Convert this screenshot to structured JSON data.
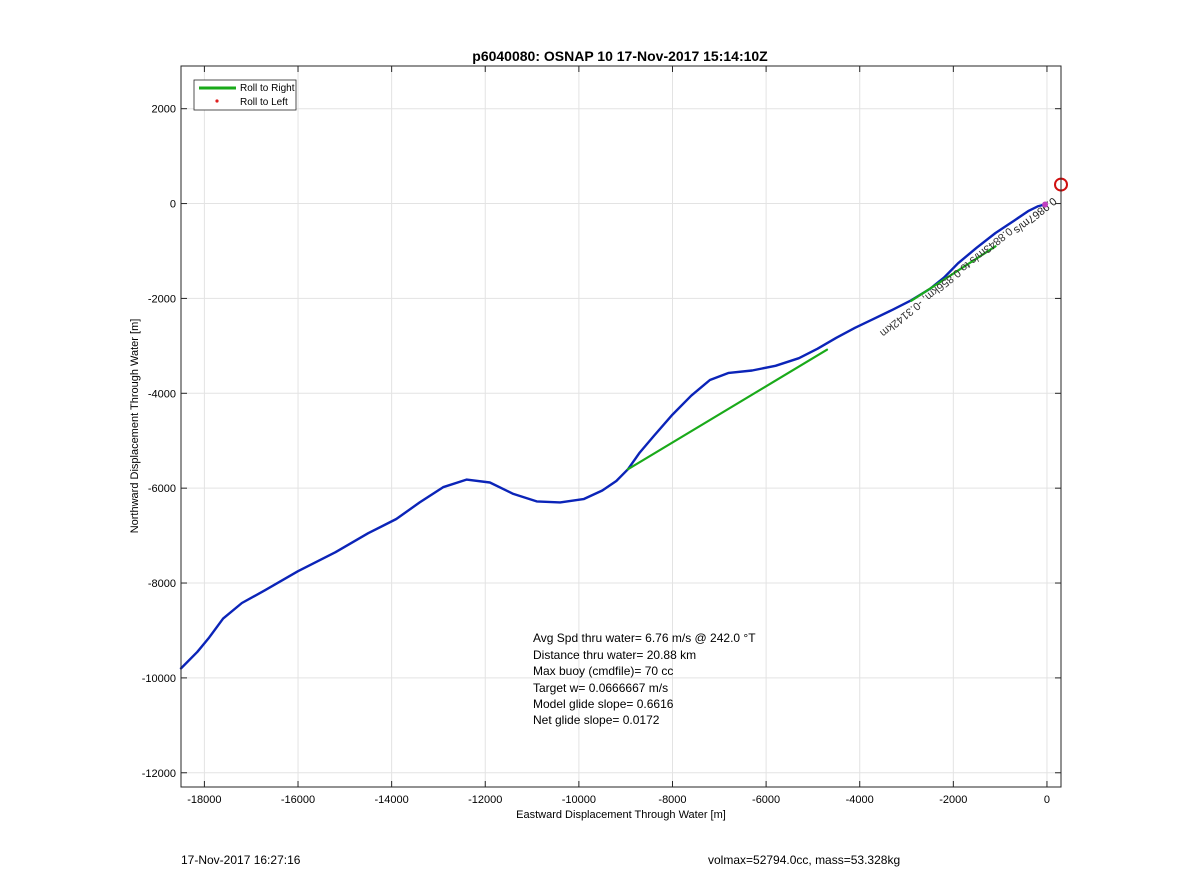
{
  "chart_data": {
    "type": "line",
    "title": "p6040080: OSNAP 10 17-Nov-2017 15:14:10Z",
    "xlabel": "Eastward Displacement Through Water [m]",
    "ylabel": "Northward Displacement Through Water [m]",
    "xlim": [
      -18500,
      300
    ],
    "ylim": [
      -12300,
      2900
    ],
    "xticks": [
      -18000,
      -16000,
      -14000,
      -12000,
      -10000,
      -8000,
      -6000,
      -4000,
      -2000,
      0
    ],
    "yticks": [
      2000,
      0,
      -2000,
      -4000,
      -6000,
      -8000,
      -10000,
      -12000
    ],
    "grid": true,
    "legend": {
      "position": "top-left",
      "entries": [
        {
          "label": "Roll to Right",
          "color": "#1aaa1a",
          "style": "line"
        },
        {
          "label": "Roll to Left",
          "color": "#e02020",
          "style": "dot"
        }
      ]
    },
    "series": [
      {
        "color": "#0b24b8",
        "x": [
          -18500,
          -18150,
          -17900,
          -17600,
          -17200,
          -16700,
          -16000,
          -15200,
          -14500,
          -13900,
          -13400,
          -12900,
          -12400,
          -11900,
          -11400,
          -10900,
          -10400,
          -9900,
          -9500,
          -9200,
          -8950,
          -8700,
          -8400,
          -8000,
          -7600,
          -7200,
          -6800,
          -6300,
          -5800,
          -5300,
          -4900,
          -4500,
          -4100,
          -3700,
          -3300,
          -2900,
          -2500,
          -2200,
          -1900,
          -1500,
          -1100,
          -700,
          -400,
          -200,
          -50
        ],
        "y": [
          -9800,
          -9450,
          -9150,
          -8750,
          -8420,
          -8150,
          -7750,
          -7350,
          -6950,
          -6650,
          -6300,
          -5980,
          -5820,
          -5880,
          -6120,
          -6280,
          -6300,
          -6230,
          -6050,
          -5850,
          -5600,
          -5250,
          -4900,
          -4450,
          -4050,
          -3720,
          -3570,
          -3520,
          -3420,
          -3260,
          -3060,
          -2830,
          -2620,
          -2430,
          -2240,
          -2040,
          -1800,
          -1560,
          -1260,
          -930,
          -620,
          -360,
          -160,
          -60,
          -20
        ]
      },
      {
        "color": "#1aaa1a",
        "x": [
          -8950,
          -4700
        ],
        "y": [
          -5600,
          -3080
        ]
      },
      {
        "color": "#1aaa1a",
        "x": [
          -2900,
          -1100
        ],
        "y": [
          -2050,
          -900
        ]
      }
    ],
    "annotations": [
      {
        "text": "0.8843m/s to 0.856km, -0.3142km",
        "x": -2200,
        "y": -1600
      },
      {
        "text": "0.9867m/s",
        "x": -300,
        "y": -200
      }
    ],
    "marker": {
      "type": "circle",
      "color": "#d01010",
      "x": 300,
      "y": 400
    },
    "stats": [
      "Avg Spd thru water=  6.76 m/s @ 242.0 °T",
      "Distance thru water= 20.88 km",
      "Max buoy (cmdfile)= 70 cc",
      "Target w= 0.0666667 m/s",
      "Model glide slope= 0.6616",
      "Net glide slope= 0.0172"
    ]
  },
  "footer": {
    "left": "17-Nov-2017 16:27:16",
    "right": "volmax=52794.0cc, mass=53.328kg"
  }
}
